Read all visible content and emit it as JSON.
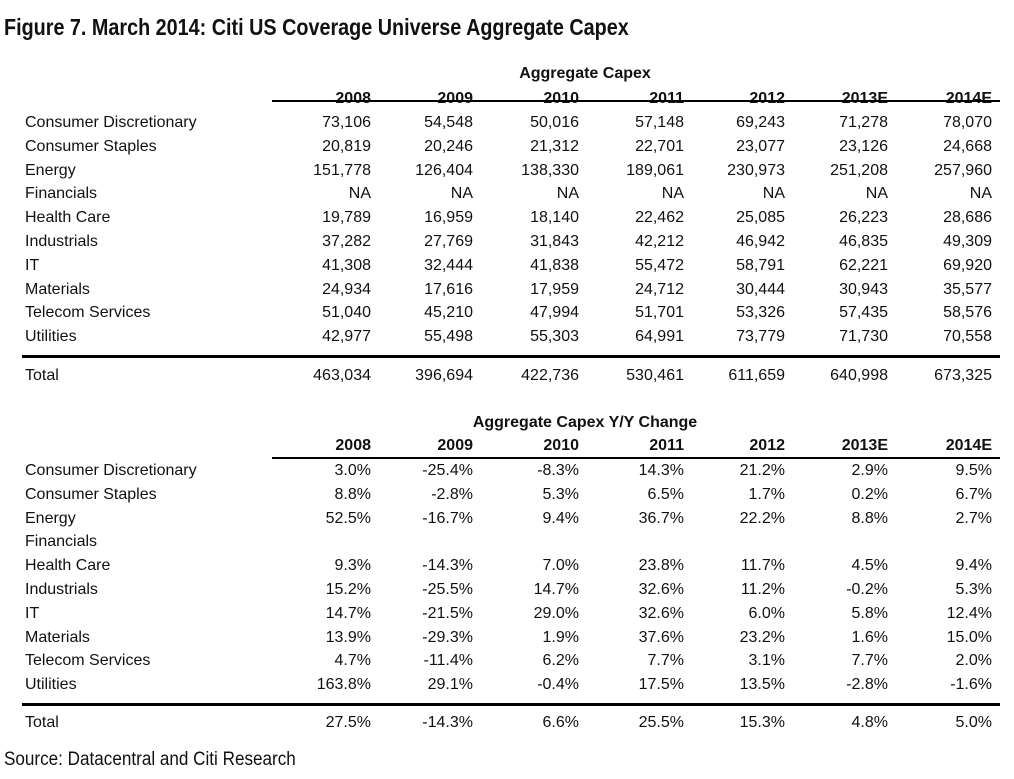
{
  "title": "Figure 7. March 2014: Citi US Coverage Universe Aggregate Capex",
  "source": "Source: Datacentral and Citi Research",
  "chart_data": [
    {
      "type": "table",
      "title": "Aggregate Capex",
      "columns": [
        "2008",
        "2009",
        "2010",
        "2011",
        "2012",
        "2013E",
        "2014E"
      ],
      "rows": [
        {
          "label": "Consumer Discretionary",
          "values": [
            "73,106",
            "54,548",
            "50,016",
            "57,148",
            "69,243",
            "71,278",
            "78,070"
          ]
        },
        {
          "label": "Consumer Staples",
          "values": [
            "20,819",
            "20,246",
            "21,312",
            "22,701",
            "23,077",
            "23,126",
            "24,668"
          ]
        },
        {
          "label": "Energy",
          "values": [
            "151,778",
            "126,404",
            "138,330",
            "189,061",
            "230,973",
            "251,208",
            "257,960"
          ]
        },
        {
          "label": "Financials",
          "values": [
            "NA",
            "NA",
            "NA",
            "NA",
            "NA",
            "NA",
            "NA"
          ]
        },
        {
          "label": "Health Care",
          "values": [
            "19,789",
            "16,959",
            "18,140",
            "22,462",
            "25,085",
            "26,223",
            "28,686"
          ]
        },
        {
          "label": "Industrials",
          "values": [
            "37,282",
            "27,769",
            "31,843",
            "42,212",
            "46,942",
            "46,835",
            "49,309"
          ]
        },
        {
          "label": "IT",
          "values": [
            "41,308",
            "32,444",
            "41,838",
            "55,472",
            "58,791",
            "62,221",
            "69,920"
          ]
        },
        {
          "label": "Materials",
          "values": [
            "24,934",
            "17,616",
            "17,959",
            "24,712",
            "30,444",
            "30,943",
            "35,577"
          ]
        },
        {
          "label": "Telecom Services",
          "values": [
            "51,040",
            "45,210",
            "47,994",
            "51,701",
            "53,326",
            "57,435",
            "58,576"
          ]
        },
        {
          "label": "Utilities",
          "values": [
            "42,977",
            "55,498",
            "55,303",
            "64,991",
            "73,779",
            "71,730",
            "70,558"
          ]
        }
      ],
      "total": {
        "label": "Total",
        "values": [
          "463,034",
          "396,694",
          "422,736",
          "530,461",
          "611,659",
          "640,998",
          "673,325"
        ]
      }
    },
    {
      "type": "table",
      "title": "Aggregate Capex Y/Y Change",
      "columns": [
        "2008",
        "2009",
        "2010",
        "2011",
        "2012",
        "2013E",
        "2014E"
      ],
      "rows": [
        {
          "label": "Consumer Discretionary",
          "values": [
            "3.0%",
            "-25.4%",
            "-8.3%",
            "14.3%",
            "21.2%",
            "2.9%",
            "9.5%"
          ]
        },
        {
          "label": "Consumer Staples",
          "values": [
            "8.8%",
            "-2.8%",
            "5.3%",
            "6.5%",
            "1.7%",
            "0.2%",
            "6.7%"
          ]
        },
        {
          "label": "Energy",
          "values": [
            "52.5%",
            "-16.7%",
            "9.4%",
            "36.7%",
            "22.2%",
            "8.8%",
            "2.7%"
          ]
        },
        {
          "label": "Financials",
          "values": [
            "",
            "",
            "",
            "",
            "",
            "",
            ""
          ]
        },
        {
          "label": "Health Care",
          "values": [
            "9.3%",
            "-14.3%",
            "7.0%",
            "23.8%",
            "11.7%",
            "4.5%",
            "9.4%"
          ]
        },
        {
          "label": "Industrials",
          "values": [
            "15.2%",
            "-25.5%",
            "14.7%",
            "32.6%",
            "11.2%",
            "-0.2%",
            "5.3%"
          ]
        },
        {
          "label": "IT",
          "values": [
            "14.7%",
            "-21.5%",
            "29.0%",
            "32.6%",
            "6.0%",
            "5.8%",
            "12.4%"
          ]
        },
        {
          "label": "Materials",
          "values": [
            "13.9%",
            "-29.3%",
            "1.9%",
            "37.6%",
            "23.2%",
            "1.6%",
            "15.0%"
          ]
        },
        {
          "label": "Telecom Services",
          "values": [
            "4.7%",
            "-11.4%",
            "6.2%",
            "7.7%",
            "3.1%",
            "7.7%",
            "2.0%"
          ]
        },
        {
          "label": "Utilities",
          "values": [
            "163.8%",
            "29.1%",
            "-0.4%",
            "17.5%",
            "13.5%",
            "-2.8%",
            "-1.6%"
          ]
        }
      ],
      "total": {
        "label": "Total",
        "values": [
          "27.5%",
          "-14.3%",
          "6.6%",
          "25.5%",
          "15.3%",
          "4.8%",
          "5.0%"
        ]
      }
    }
  ]
}
